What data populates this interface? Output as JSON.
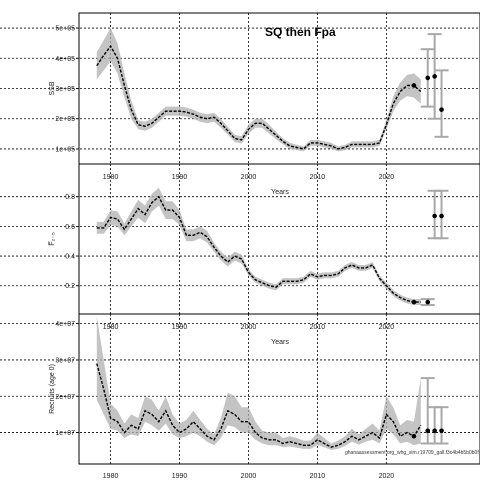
{
  "title": "SQ then Fpa",
  "note": "ghanaassessment.org_whg_sim.r19709_gall.f3c4b4b5b0b0f",
  "colors": {
    "band": "#b0b0b0",
    "line": "#000000",
    "grid": "#000000",
    "future_bar": "#a8a8a8"
  },
  "chart_data": [
    {
      "type": "line",
      "ylabel": "SSB",
      "xlabel": "Years",
      "xlim": [
        1976,
        2033
      ],
      "ylim": [
        70000,
        530000
      ],
      "yticks": [
        100000,
        200000,
        300000,
        400000,
        500000
      ],
      "ytick_labels": [
        "1e+05",
        "2e+05",
        "3e+05",
        "4e+05",
        "5e+05"
      ],
      "xticks": [
        1980,
        1990,
        2000,
        2010,
        2020
      ],
      "xtick_labels": [
        "1980",
        "1990",
        "2000",
        "2010",
        "2020"
      ],
      "grid": true,
      "x": [
        1978,
        1979,
        1980,
        1981,
        1982,
        1983,
        1984,
        1985,
        1986,
        1987,
        1988,
        1989,
        1990,
        1991,
        1992,
        1993,
        1994,
        1995,
        1996,
        1997,
        1998,
        1999,
        2000,
        2001,
        2002,
        2003,
        2004,
        2005,
        2006,
        2007,
        2008,
        2009,
        2010,
        2011,
        2012,
        2013,
        2014,
        2015,
        2016,
        2017,
        2018,
        2019,
        2020,
        2021,
        2022,
        2023,
        2024,
        2025
      ],
      "y": [
        375000,
        410000,
        440000,
        400000,
        310000,
        230000,
        180000,
        175000,
        185000,
        205000,
        225000,
        225000,
        225000,
        222000,
        215000,
        205000,
        200000,
        205000,
        185000,
        160000,
        135000,
        130000,
        165000,
        185000,
        185000,
        165000,
        145000,
        125000,
        110000,
        105000,
        100000,
        120000,
        120000,
        115000,
        110000,
        100000,
        105000,
        115000,
        115000,
        115000,
        115000,
        120000,
        180000,
        250000,
        290000,
        310000,
        310000,
        290000
      ],
      "lower": [
        330000,
        360000,
        390000,
        350000,
        270000,
        200000,
        165000,
        160000,
        170000,
        190000,
        210000,
        210000,
        210000,
        207000,
        200000,
        190000,
        185000,
        190000,
        170000,
        147000,
        123000,
        118000,
        150000,
        170000,
        170000,
        150000,
        133000,
        115000,
        100000,
        96000,
        92000,
        110000,
        110000,
        105000,
        100000,
        92000,
        96000,
        105000,
        105000,
        105000,
        105000,
        110000,
        165000,
        225000,
        260000,
        275000,
        270000,
        250000
      ],
      "upper": [
        420000,
        460000,
        500000,
        450000,
        350000,
        260000,
        195000,
        190000,
        200000,
        220000,
        240000,
        240000,
        240000,
        237000,
        230000,
        220000,
        215000,
        220000,
        200000,
        173000,
        147000,
        142000,
        180000,
        200000,
        200000,
        180000,
        157000,
        135000,
        120000,
        114000,
        108000,
        130000,
        130000,
        125000,
        120000,
        108000,
        114000,
        125000,
        125000,
        125000,
        125000,
        130000,
        195000,
        275000,
        320000,
        345000,
        350000,
        330000
      ],
      "projections": [
        {
          "x": 2026,
          "y": 335000,
          "lo": 240000,
          "hi": 430000
        },
        {
          "x": 2027,
          "y": 340000,
          "lo": 200000,
          "hi": 480000
        },
        {
          "x": 2028,
          "y": 230000,
          "lo": 140000,
          "hi": 360000
        }
      ]
    },
    {
      "type": "line",
      "ylabel": "F̅₂₋₅",
      "xlabel": "Years",
      "xlim": [
        1976,
        2033
      ],
      "ylim": [
        0.05,
        0.98
      ],
      "yticks": [
        0.2,
        0.4,
        0.6,
        0.8
      ],
      "ytick_labels": [
        "0.2",
        "0.4",
        "0.6",
        "0.8"
      ],
      "xticks": [
        1980,
        1990,
        2000,
        2010,
        2020
      ],
      "xtick_labels": [
        "1980",
        "1990",
        "2000",
        "2010",
        "2020"
      ],
      "grid": true,
      "x": [
        1978,
        1979,
        1980,
        1981,
        1982,
        1983,
        1984,
        1985,
        1986,
        1987,
        1988,
        1989,
        1990,
        1991,
        1992,
        1993,
        1994,
        1995,
        1996,
        1997,
        1998,
        1999,
        2000,
        2001,
        2002,
        2003,
        2004,
        2005,
        2006,
        2007,
        2008,
        2009,
        2010,
        2011,
        2012,
        2013,
        2014,
        2015,
        2016,
        2017,
        2018,
        2019,
        2020,
        2021,
        2022,
        2023,
        2024,
        2025
      ],
      "y": [
        0.59,
        0.59,
        0.66,
        0.65,
        0.58,
        0.65,
        0.72,
        0.68,
        0.76,
        0.8,
        0.71,
        0.71,
        0.66,
        0.54,
        0.54,
        0.56,
        0.53,
        0.46,
        0.4,
        0.36,
        0.4,
        0.38,
        0.29,
        0.24,
        0.22,
        0.2,
        0.19,
        0.23,
        0.23,
        0.23,
        0.24,
        0.28,
        0.26,
        0.27,
        0.27,
        0.28,
        0.32,
        0.34,
        0.32,
        0.32,
        0.34,
        0.25,
        0.2,
        0.15,
        0.12,
        0.1,
        0.09,
        0.09
      ],
      "lower": [
        0.55,
        0.55,
        0.61,
        0.6,
        0.54,
        0.6,
        0.66,
        0.62,
        0.7,
        0.74,
        0.65,
        0.65,
        0.61,
        0.5,
        0.5,
        0.52,
        0.49,
        0.43,
        0.37,
        0.33,
        0.37,
        0.35,
        0.27,
        0.22,
        0.2,
        0.18,
        0.17,
        0.21,
        0.21,
        0.21,
        0.22,
        0.26,
        0.24,
        0.25,
        0.25,
        0.26,
        0.3,
        0.32,
        0.3,
        0.3,
        0.32,
        0.23,
        0.18,
        0.13,
        0.1,
        0.08,
        0.07,
        0.07
      ],
      "upper": [
        0.63,
        0.63,
        0.71,
        0.7,
        0.62,
        0.7,
        0.78,
        0.74,
        0.82,
        0.86,
        0.77,
        0.77,
        0.71,
        0.58,
        0.58,
        0.6,
        0.57,
        0.49,
        0.43,
        0.39,
        0.43,
        0.41,
        0.31,
        0.26,
        0.24,
        0.22,
        0.21,
        0.25,
        0.25,
        0.25,
        0.26,
        0.3,
        0.28,
        0.29,
        0.29,
        0.3,
        0.34,
        0.36,
        0.34,
        0.34,
        0.36,
        0.27,
        0.22,
        0.17,
        0.14,
        0.12,
        0.11,
        0.11
      ],
      "projections": [
        {
          "x": 2026,
          "y": 0.09,
          "lo": 0.07,
          "hi": 0.11
        },
        {
          "x": 2027,
          "y": 0.67,
          "lo": 0.52,
          "hi": 0.84
        },
        {
          "x": 2028,
          "y": 0.67,
          "lo": 0.52,
          "hi": 0.84
        }
      ]
    },
    {
      "type": "line",
      "ylabel": "Recruits (age 0)",
      "xlabel": "Years",
      "xlim": [
        1976,
        2033
      ],
      "ylim": [
        3000000,
        41000000
      ],
      "yticks": [
        10000000,
        20000000,
        30000000,
        40000000
      ],
      "ytick_labels": [
        "1e+07",
        "2e+07",
        "3e+07",
        "4e+07"
      ],
      "xticks": [
        1980,
        1990,
        2000,
        2010,
        2020
      ],
      "xtick_labels": [
        "1980",
        "1990",
        "2000",
        "2010",
        "2020"
      ],
      "grid": true,
      "x": [
        1978,
        1979,
        1980,
        1981,
        1982,
        1983,
        1984,
        1985,
        1986,
        1987,
        1988,
        1989,
        1990,
        1991,
        1992,
        1993,
        1994,
        1995,
        1996,
        1997,
        1998,
        1999,
        2000,
        2001,
        2002,
        2003,
        2004,
        2005,
        2006,
        2007,
        2008,
        2009,
        2010,
        2011,
        2012,
        2013,
        2014,
        2015,
        2016,
        2017,
        2018,
        2019,
        2020,
        2021,
        2022,
        2023,
        2024,
        2025
      ],
      "y": [
        29000000,
        22000000,
        14000000,
        13000000,
        10000000,
        12000000,
        11000000,
        16000000,
        15000000,
        13000000,
        16000000,
        12000000,
        10000000,
        11000000,
        13000000,
        11000000,
        9000000,
        8000000,
        11000000,
        16000000,
        15000000,
        13000000,
        13000000,
        10000000,
        8500000,
        8000000,
        8000000,
        7000000,
        7500000,
        7000000,
        6500000,
        6500000,
        8000000,
        7000000,
        6000000,
        6500000,
        7500000,
        9000000,
        8000000,
        9000000,
        10000000,
        8500000,
        15000000,
        13000000,
        9000000,
        10000000,
        9000000,
        12000000
      ],
      "lower": [
        19000000,
        15000000,
        11000000,
        10500000,
        8500000,
        9500000,
        9000000,
        13000000,
        12000000,
        10500000,
        12500000,
        9500000,
        8500000,
        9000000,
        10000000,
        9000000,
        7500000,
        6500000,
        8500000,
        12000000,
        11500000,
        10000000,
        10000000,
        8000000,
        7000000,
        6500000,
        6500000,
        6000000,
        6200000,
        5800000,
        5500000,
        5500000,
        6500000,
        6000000,
        5200000,
        5500000,
        6300000,
        7500000,
        6700000,
        7500000,
        8000000,
        7000000,
        11000000,
        9500000,
        7000000,
        7500000,
        6500000,
        7000000
      ],
      "upper": [
        42000000,
        30000000,
        18000000,
        16000000,
        12500000,
        15000000,
        14000000,
        20000000,
        19000000,
        16000000,
        20000000,
        15000000,
        12500000,
        13500000,
        16000000,
        13500000,
        11000000,
        9500000,
        14000000,
        21000000,
        20000000,
        17000000,
        17000000,
        13000000,
        10500000,
        10000000,
        10000000,
        8500000,
        9000000,
        8500000,
        7800000,
        7800000,
        10000000,
        8500000,
        7000000,
        7800000,
        9000000,
        11000000,
        9500000,
        11000000,
        12500000,
        10500000,
        20000000,
        17000000,
        12000000,
        13500000,
        13000000,
        25000000
      ],
      "projections": [
        {
          "x": 2026,
          "y": 10500000,
          "lo": 7000000,
          "hi": 25000000
        },
        {
          "x": 2027,
          "y": 10500000,
          "lo": 7000000,
          "hi": 17000000
        },
        {
          "x": 2028,
          "y": 10500000,
          "lo": 7000000,
          "hi": 17000000
        }
      ]
    }
  ]
}
